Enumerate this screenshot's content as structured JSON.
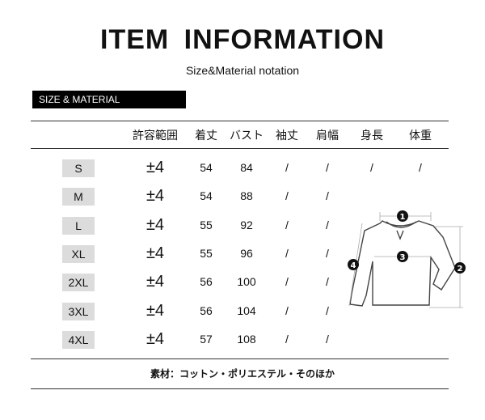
{
  "header": {
    "title": "ITEM  INFORMATION",
    "subtitle": "Size&Material notation"
  },
  "section_label": "SIZE & MATERIAL",
  "table": {
    "columns": [
      "許容範囲",
      "着丈",
      "バスト",
      "袖丈",
      "肩幅",
      "身長",
      "体重"
    ],
    "rows": [
      {
        "size": "S",
        "tolerance": "±4",
        "length": "54",
        "bust": "84",
        "sleeve": "/",
        "shoulder": "/",
        "height": "/",
        "weight": "/"
      },
      {
        "size": "M",
        "tolerance": "±4",
        "length": "54",
        "bust": "88",
        "sleeve": "/",
        "shoulder": "/"
      },
      {
        "size": "L",
        "tolerance": "±4",
        "length": "55",
        "bust": "92",
        "sleeve": "/",
        "shoulder": "/"
      },
      {
        "size": "XL",
        "tolerance": "±4",
        "length": "55",
        "bust": "96",
        "sleeve": "/",
        "shoulder": "/"
      },
      {
        "size": "2XL",
        "tolerance": "±4",
        "length": "56",
        "bust": "100",
        "sleeve": "/",
        "shoulder": "/"
      },
      {
        "size": "3XL",
        "tolerance": "±4",
        "length": "56",
        "bust": "104",
        "sleeve": "/",
        "shoulder": "/"
      },
      {
        "size": "4XL",
        "tolerance": "±4",
        "length": "57",
        "bust": "108",
        "sleeve": "/",
        "shoulder": "/"
      }
    ]
  },
  "diagram": {
    "markers": [
      "1",
      "2",
      "3",
      "4"
    ]
  },
  "footer": "素材：コットン・ポリエステル・そのほか"
}
